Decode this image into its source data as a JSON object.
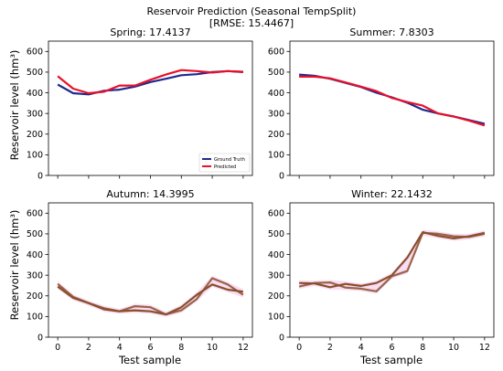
{
  "figure": {
    "title_line1": "Reservoir Prediction (Seasonal TempSplit)",
    "title_line2": "[RMSE: 15.4467]",
    "xlabel": "Test sample",
    "ylabel": "Reservoir level (hm³)"
  },
  "colors": {
    "ground_truth": "#1f2b8c",
    "predicted": "#e8102a",
    "overlap_olive": "#8a4f2a",
    "shade_pink": "#f4c6ec"
  },
  "legend": {
    "placement": "lower-right of Spring panel",
    "entries": [
      "Ground Truth",
      "Predicted"
    ]
  },
  "chart_data": [
    {
      "type": "line",
      "title": "Spring: 17.4137",
      "x": [
        0,
        1,
        2,
        3,
        4,
        5,
        6,
        7,
        8,
        9,
        10,
        11,
        12
      ],
      "xticks": [
        0,
        2,
        4,
        6,
        8,
        10,
        12
      ],
      "yticks": [
        0,
        100,
        200,
        300,
        400,
        500,
        600
      ],
      "ylim": [
        0,
        650
      ],
      "xlim": [
        -0.6,
        12.6
      ],
      "series": [
        {
          "name": "Ground Truth",
          "values": [
            440,
            398,
            392,
            410,
            415,
            430,
            452,
            468,
            485,
            490,
            500,
            505,
            500
          ]
        },
        {
          "name": "Predicted",
          "values": [
            480,
            420,
            398,
            405,
            435,
            435,
            463,
            488,
            510,
            505,
            498,
            505,
            502
          ]
        }
      ]
    },
    {
      "type": "line",
      "title": "Summer: 7.8303",
      "x": [
        0,
        1,
        2,
        3,
        4,
        5,
        6,
        7,
        8,
        9,
        10,
        11,
        12
      ],
      "xticks": [
        0,
        2,
        4,
        6,
        8,
        10,
        12
      ],
      "yticks": [
        0,
        100,
        200,
        300,
        400,
        500,
        600
      ],
      "ylim": [
        0,
        650
      ],
      "xlim": [
        -0.6,
        12.6
      ],
      "series": [
        {
          "name": "Ground Truth",
          "values": [
            488,
            482,
            468,
            448,
            428,
            400,
            378,
            352,
            318,
            300,
            285,
            268,
            250
          ]
        },
        {
          "name": "Predicted",
          "values": [
            478,
            478,
            470,
            450,
            430,
            408,
            375,
            355,
            338,
            300,
            285,
            265,
            242
          ]
        }
      ]
    },
    {
      "type": "line",
      "title": "Autumn: 14.3995",
      "x": [
        0,
        1,
        2,
        3,
        4,
        5,
        6,
        7,
        8,
        9,
        10,
        11,
        12
      ],
      "xticks": [
        0,
        2,
        4,
        6,
        8,
        10,
        12
      ],
      "yticks": [
        0,
        100,
        200,
        300,
        400,
        500,
        600
      ],
      "ylim": [
        0,
        650
      ],
      "xlim": [
        -0.6,
        12.6
      ],
      "series": [
        {
          "name": "Ground Truth",
          "values": [
            245,
            190,
            165,
            135,
            125,
            130,
            125,
            110,
            145,
            205,
            255,
            230,
            220
          ]
        },
        {
          "name": "Predicted",
          "values": [
            258,
            195,
            165,
            140,
            125,
            150,
            145,
            110,
            130,
            185,
            285,
            255,
            205
          ]
        }
      ]
    },
    {
      "type": "line",
      "title": "Winter: 22.1432",
      "x": [
        0,
        1,
        2,
        3,
        4,
        5,
        6,
        7,
        8,
        9,
        10,
        11,
        12
      ],
      "xticks": [
        0,
        2,
        4,
        6,
        8,
        10,
        12
      ],
      "yticks": [
        0,
        100,
        200,
        300,
        400,
        500,
        600
      ],
      "ylim": [
        0,
        650
      ],
      "xlim": [
        -0.6,
        12.6
      ],
      "series": [
        {
          "name": "Ground Truth",
          "values": [
            262,
            260,
            242,
            258,
            248,
            262,
            300,
            385,
            508,
            490,
            478,
            488,
            505
          ]
        },
        {
          "name": "Predicted",
          "values": [
            245,
            262,
            265,
            240,
            235,
            222,
            295,
            320,
            505,
            500,
            488,
            485,
            500
          ]
        }
      ]
    }
  ]
}
